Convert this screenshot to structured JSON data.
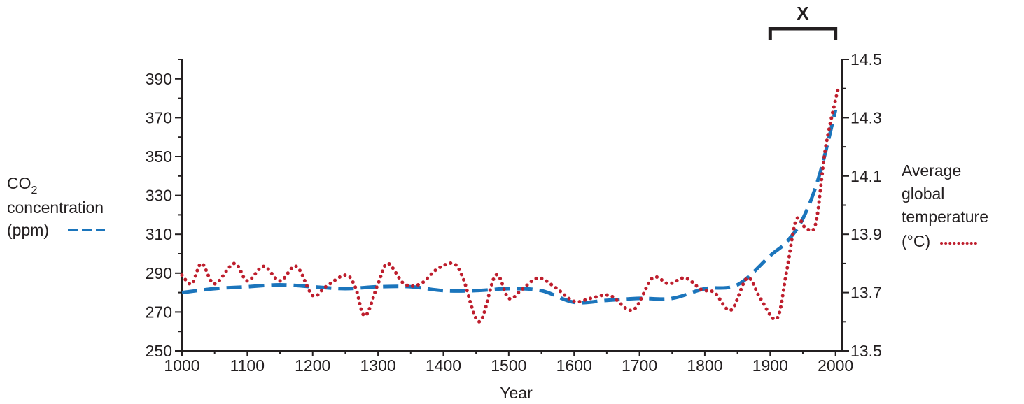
{
  "chart_data": {
    "type": "line",
    "xlabel": "Year",
    "x_ticks": [
      1000,
      1100,
      1200,
      1300,
      1400,
      1500,
      1600,
      1700,
      1800,
      1900,
      2000
    ],
    "xlim": [
      1000,
      2010
    ],
    "left_axis": {
      "label_main": "CO",
      "label_subscript": "2",
      "label_line2": "concentration",
      "label_line3": "(ppm)",
      "ylim": [
        250,
        400
      ],
      "ticks": [
        250,
        270,
        290,
        310,
        330,
        350,
        370,
        390
      ]
    },
    "right_axis": {
      "label_lines": [
        "Average",
        "global",
        "temperature",
        "(°C)"
      ],
      "ylim": [
        13.5,
        14.5
      ],
      "ticks": [
        "13.5",
        "13.7",
        "13.9",
        "14.1",
        "14.3",
        "14.5"
      ]
    },
    "bracket_label": "X",
    "bracket_range": [
      1900,
      2000
    ],
    "series": [
      {
        "axis": "left",
        "style": "dashed",
        "color": "#1b75bc",
        "x": [
          1000,
          1050,
          1100,
          1150,
          1200,
          1250,
          1300,
          1350,
          1400,
          1450,
          1500,
          1550,
          1600,
          1650,
          1700,
          1750,
          1800,
          1850,
          1900,
          1925,
          1950,
          1975,
          2000
        ],
        "y": [
          280,
          282,
          283,
          284,
          283,
          282,
          283,
          283,
          281,
          281,
          282,
          281,
          275,
          276,
          277,
          277,
          282,
          284,
          299,
          306,
          318,
          340,
          374
        ]
      },
      {
        "axis": "right",
        "style": "dotted",
        "color": "#be1e2d",
        "x": [
          1000,
          1015,
          1030,
          1050,
          1080,
          1100,
          1125,
          1150,
          1175,
          1200,
          1220,
          1250,
          1265,
          1280,
          1300,
          1315,
          1340,
          1365,
          1390,
          1415,
          1430,
          1455,
          1480,
          1500,
          1520,
          1545,
          1570,
          1600,
          1625,
          1655,
          1690,
          1720,
          1745,
          1770,
          1795,
          1815,
          1840,
          1865,
          1885,
          1910,
          1925,
          1940,
          1955,
          1970,
          1985,
          2005
        ],
        "y": [
          13.76,
          13.73,
          13.8,
          13.73,
          13.8,
          13.74,
          13.79,
          13.74,
          13.79,
          13.69,
          13.72,
          13.76,
          13.72,
          13.62,
          13.73,
          13.8,
          13.73,
          13.73,
          13.78,
          13.8,
          13.75,
          13.6,
          13.76,
          13.68,
          13.71,
          13.75,
          13.72,
          13.67,
          13.68,
          13.69,
          13.64,
          13.75,
          13.73,
          13.75,
          13.71,
          13.7,
          13.64,
          13.75,
          13.68,
          13.61,
          13.77,
          13.95,
          13.92,
          13.94,
          14.2,
          14.41
        ]
      }
    ]
  }
}
